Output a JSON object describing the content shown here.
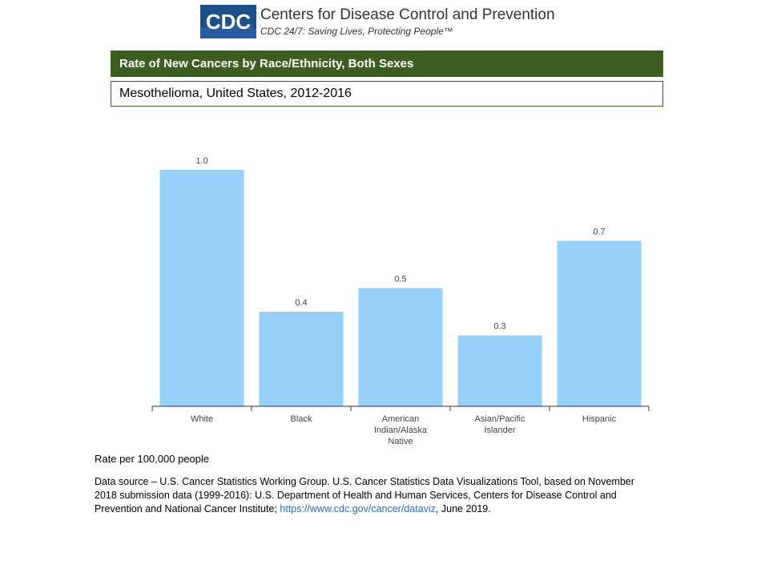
{
  "header": {
    "logo_text": "CDC",
    "org_name": "Centers for Disease Control and Prevention",
    "tagline": "CDC 24/7: Saving Lives, Protecting People™"
  },
  "title": "Rate of New Cancers by Race/Ethnicity, Both Sexes",
  "subtitle": "Mesothelioma, United States, 2012-2016",
  "chart_data": {
    "type": "bar",
    "categories": [
      [
        "White"
      ],
      [
        "Black"
      ],
      [
        "American",
        "Indian/Alaska",
        "Native"
      ],
      [
        "Asian/Pacific",
        "Islander"
      ],
      [
        "Hispanic"
      ]
    ],
    "values": [
      1.0,
      0.4,
      0.5,
      0.3,
      0.7
    ],
    "value_labels": [
      "1.0",
      "0.4",
      "0.5",
      "0.3",
      "0.7"
    ],
    "ylim": [
      0,
      1.0
    ],
    "bar_color": "#96d0f8",
    "xlabel": "",
    "ylabel": ""
  },
  "footer": {
    "note": "Rate per 100,000 people",
    "source_text": "Data source – U.S. Cancer Statistics Working Group. U.S. Cancer Statistics Data Visualizations Tool, based on November 2018 submission data (1999-2016): U.S. Department of Health and Human Services, Centers for Disease Control and Prevention and National Cancer Institute; ",
    "source_link": "https://www.cdc.gov/cancer/dataviz",
    "source_suffix": ", June 2019."
  }
}
